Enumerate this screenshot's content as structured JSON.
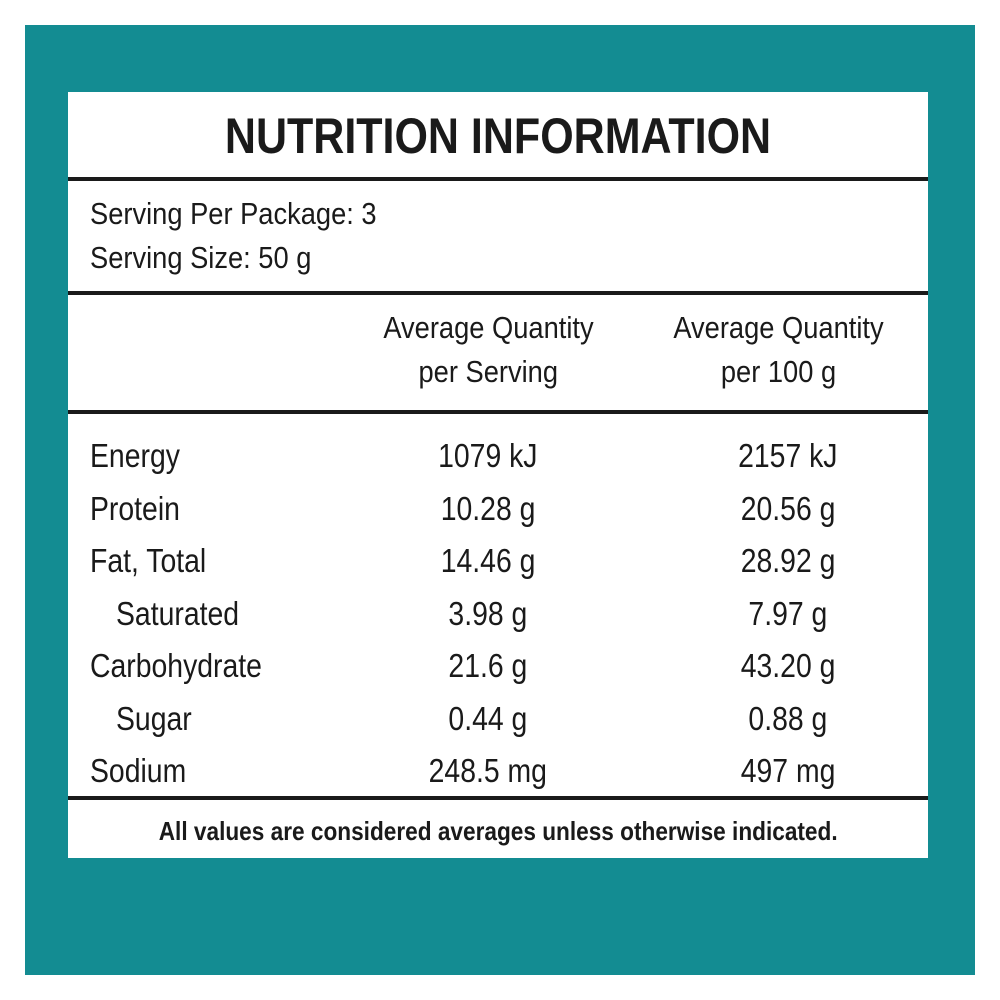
{
  "label": {
    "title": "NUTRITION INFORMATION",
    "serving_per_package": "Serving Per Package: 3",
    "serving_size": "Serving Size: 50 g",
    "columns": [
      {
        "line1": "Average Quantity",
        "line2": "per Serving"
      },
      {
        "line1": "Average Quantity",
        "line2": "per 100 g"
      }
    ],
    "rows": [
      {
        "name": "Energy",
        "per_serving": "1079 kJ",
        "per_100g": "2157 kJ",
        "indent": false
      },
      {
        "name": "Protein",
        "per_serving": "10.28 g",
        "per_100g": "20.56 g",
        "indent": false
      },
      {
        "name": "Fat, Total",
        "per_serving": "14.46 g",
        "per_100g": "28.92 g",
        "indent": false
      },
      {
        "name": "Saturated",
        "per_serving": "3.98 g",
        "per_100g": "7.97 g",
        "indent": true
      },
      {
        "name": "Carbohydrate",
        "per_serving": "21.6 g",
        "per_100g": "43.20 g",
        "indent": false
      },
      {
        "name": "Sugar",
        "per_serving": "0.44 g",
        "per_100g": "0.88 g",
        "indent": true
      },
      {
        "name": "Sodium",
        "per_serving": "248.5 mg",
        "per_100g": "497 mg",
        "indent": false
      }
    ],
    "footer": "All values are considered averages unless otherwise indicated."
  },
  "colors": {
    "frame": "#138c92",
    "panel": "#ffffff",
    "text": "#1a1a1a"
  }
}
